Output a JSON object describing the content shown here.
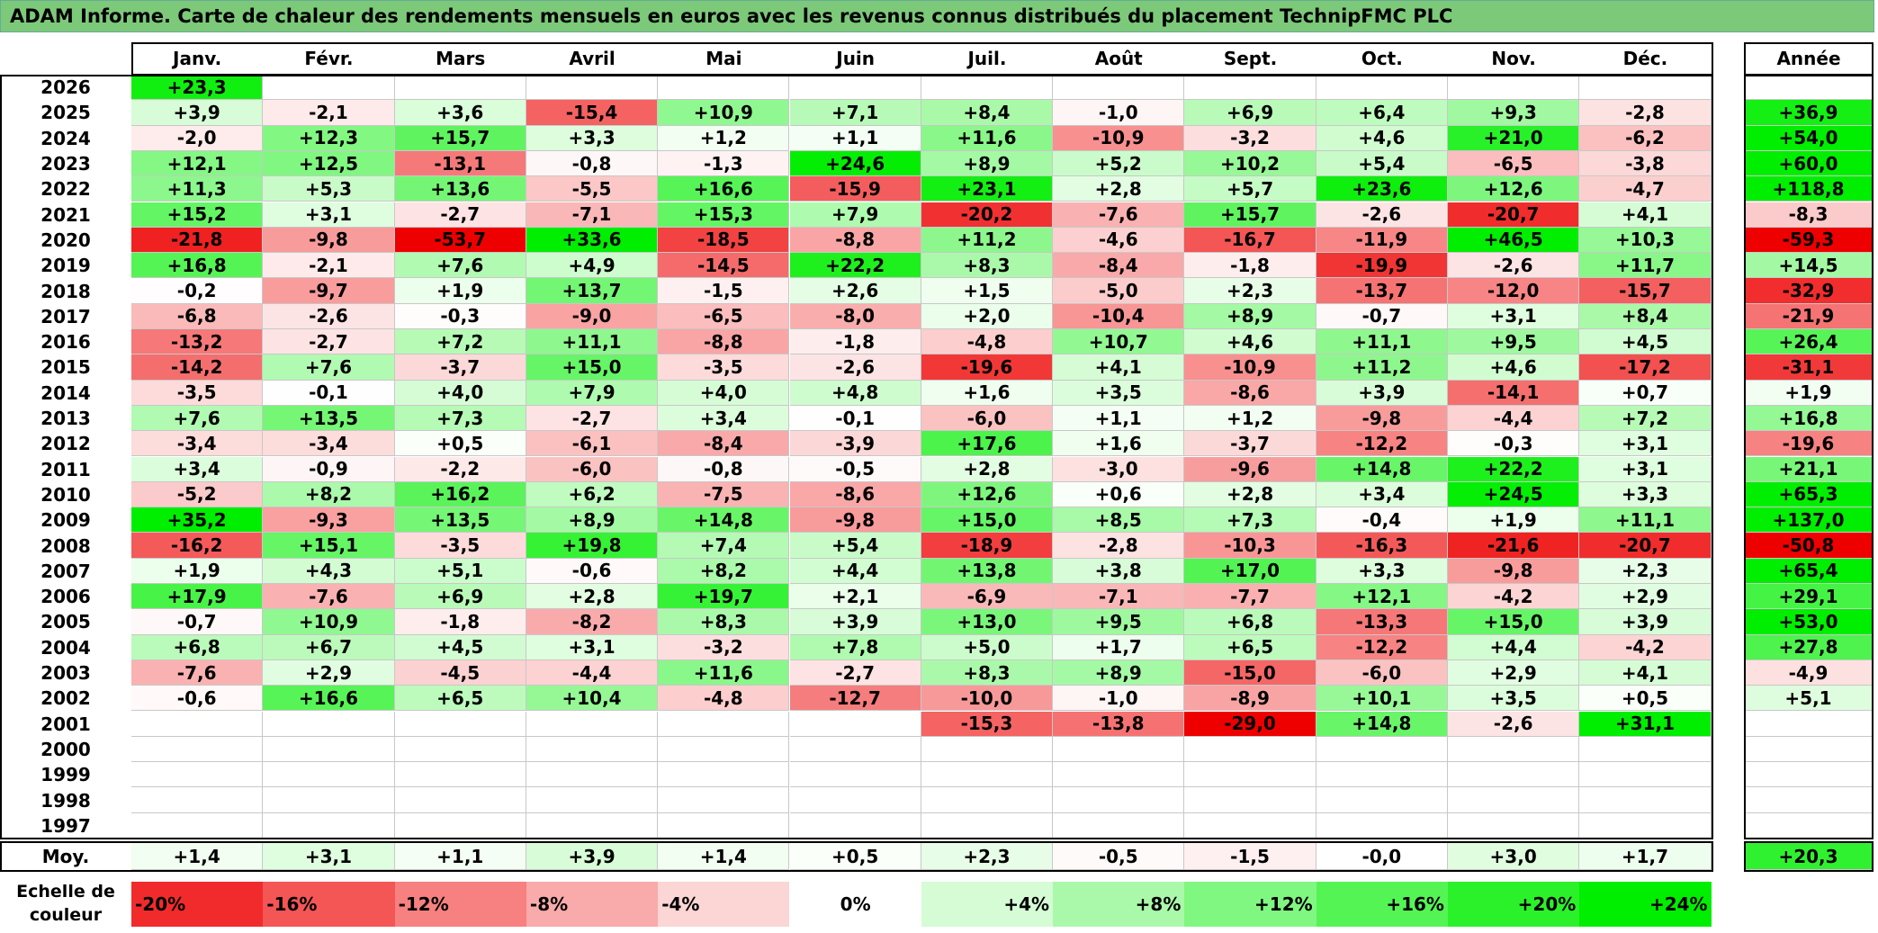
{
  "title": "ADAM Informe. Carte de chaleur des rendements mensuels en euros avec les revenus connus distribués du placement TechnipFMC PLC",
  "chart_data": {
    "type": "heatmap",
    "months": [
      "Janv.",
      "Févr.",
      "Mars",
      "Avril",
      "Mai",
      "Juin",
      "Juil.",
      "Août",
      "Sept.",
      "Oct.",
      "Nov.",
      "Déc."
    ],
    "annual_header": "Année",
    "rows": [
      {
        "year": "2026",
        "values": [
          "+23,3",
          "",
          "",
          "",
          "",
          "",
          "",
          "",
          "",
          "",
          "",
          ""
        ],
        "annual": ""
      },
      {
        "year": "2025",
        "values": [
          "+3,9",
          "-2,1",
          "+3,6",
          "-15,4",
          "+10,9",
          "+7,1",
          "+8,4",
          "-1,0",
          "+6,9",
          "+6,4",
          "+9,3",
          "-2,8"
        ],
        "annual": "+36,9"
      },
      {
        "year": "2024",
        "values": [
          "-2,0",
          "+12,3",
          "+15,7",
          "+3,3",
          "+1,2",
          "+1,1",
          "+11,6",
          "-10,9",
          "-3,2",
          "+4,6",
          "+21,0",
          "-6,2"
        ],
        "annual": "+54,0"
      },
      {
        "year": "2023",
        "values": [
          "+12,1",
          "+12,5",
          "-13,1",
          "-0,8",
          "-1,3",
          "+24,6",
          "+8,9",
          "+5,2",
          "+10,2",
          "+5,4",
          "-6,5",
          "-3,8"
        ],
        "annual": "+60,0"
      },
      {
        "year": "2022",
        "values": [
          "+11,3",
          "+5,3",
          "+13,6",
          "-5,5",
          "+16,6",
          "-15,9",
          "+23,1",
          "+2,8",
          "+5,7",
          "+23,6",
          "+12,6",
          "-4,7"
        ],
        "annual": "+118,8"
      },
      {
        "year": "2021",
        "values": [
          "+15,2",
          "+3,1",
          "-2,7",
          "-7,1",
          "+15,3",
          "+7,9",
          "-20,2",
          "-7,6",
          "+15,7",
          "-2,6",
          "-20,7",
          "+4,1"
        ],
        "annual": "-8,3"
      },
      {
        "year": "2020",
        "values": [
          "-21,8",
          "-9,8",
          "-53,7",
          "+33,6",
          "-18,5",
          "-8,8",
          "+11,2",
          "-4,6",
          "-16,7",
          "-11,9",
          "+46,5",
          "+10,3"
        ],
        "annual": "-59,3"
      },
      {
        "year": "2019",
        "values": [
          "+16,8",
          "-2,1",
          "+7,6",
          "+4,9",
          "-14,5",
          "+22,2",
          "+8,3",
          "-8,4",
          "-1,8",
          "-19,9",
          "-2,6",
          "+11,7"
        ],
        "annual": "+14,5"
      },
      {
        "year": "2018",
        "values": [
          "-0,2",
          "-9,7",
          "+1,9",
          "+13,7",
          "-1,5",
          "+2,6",
          "+1,5",
          "-5,0",
          "+2,3",
          "-13,7",
          "-12,0",
          "-15,7"
        ],
        "annual": "-32,9"
      },
      {
        "year": "2017",
        "values": [
          "-6,8",
          "-2,6",
          "-0,3",
          "-9,0",
          "-6,5",
          "-8,0",
          "+2,0",
          "-10,4",
          "+8,9",
          "-0,7",
          "+3,1",
          "+8,4"
        ],
        "annual": "-21,9"
      },
      {
        "year": "2016",
        "values": [
          "-13,2",
          "-2,7",
          "+7,2",
          "+11,1",
          "-8,8",
          "-1,8",
          "-4,8",
          "+10,7",
          "+4,6",
          "+11,1",
          "+9,5",
          "+4,5"
        ],
        "annual": "+26,4"
      },
      {
        "year": "2015",
        "values": [
          "-14,2",
          "+7,6",
          "-3,7",
          "+15,0",
          "-3,5",
          "-2,6",
          "-19,6",
          "+4,1",
          "-10,9",
          "+11,2",
          "+4,6",
          "-17,2"
        ],
        "annual": "-31,1"
      },
      {
        "year": "2014",
        "values": [
          "-3,5",
          "-0,1",
          "+4,0",
          "+7,9",
          "+4,0",
          "+4,8",
          "+1,6",
          "+3,5",
          "-8,6",
          "+3,9",
          "-14,1",
          "+0,7"
        ],
        "annual": "+1,9"
      },
      {
        "year": "2013",
        "values": [
          "+7,6",
          "+13,5",
          "+7,3",
          "-2,7",
          "+3,4",
          "-0,1",
          "-6,0",
          "+1,1",
          "+1,2",
          "-9,8",
          "-4,4",
          "+7,2"
        ],
        "annual": "+16,8"
      },
      {
        "year": "2012",
        "values": [
          "-3,4",
          "-3,4",
          "+0,5",
          "-6,1",
          "-8,4",
          "-3,9",
          "+17,6",
          "+1,6",
          "-3,7",
          "-12,2",
          "-0,3",
          "+3,1"
        ],
        "annual": "-19,6"
      },
      {
        "year": "2011",
        "values": [
          "+3,4",
          "-0,9",
          "-2,2",
          "-6,0",
          "-0,8",
          "-0,5",
          "+2,8",
          "-3,0",
          "-9,6",
          "+14,8",
          "+22,2",
          "+3,1"
        ],
        "annual": "+21,1"
      },
      {
        "year": "2010",
        "values": [
          "-5,2",
          "+8,2",
          "+16,2",
          "+6,2",
          "-7,5",
          "-8,6",
          "+12,6",
          "+0,6",
          "+2,8",
          "+3,4",
          "+24,5",
          "+3,3"
        ],
        "annual": "+65,3"
      },
      {
        "year": "2009",
        "values": [
          "+35,2",
          "-9,3",
          "+13,5",
          "+8,9",
          "+14,8",
          "-9,8",
          "+15,0",
          "+8,5",
          "+7,3",
          "-0,4",
          "+1,9",
          "+11,1"
        ],
        "annual": "+137,0"
      },
      {
        "year": "2008",
        "values": [
          "-16,2",
          "+15,1",
          "-3,5",
          "+19,8",
          "+7,4",
          "+5,4",
          "-18,9",
          "-2,8",
          "-10,3",
          "-16,3",
          "-21,6",
          "-20,7"
        ],
        "annual": "-50,8"
      },
      {
        "year": "2007",
        "values": [
          "+1,9",
          "+4,3",
          "+5,1",
          "-0,6",
          "+8,2",
          "+4,4",
          "+13,8",
          "+3,8",
          "+17,0",
          "+3,3",
          "-9,8",
          "+2,3"
        ],
        "annual": "+65,4"
      },
      {
        "year": "2006",
        "values": [
          "+17,9",
          "-7,6",
          "+6,9",
          "+2,8",
          "+19,7",
          "+2,1",
          "-6,9",
          "-7,1",
          "-7,7",
          "+12,1",
          "-4,2",
          "+2,9"
        ],
        "annual": "+29,1"
      },
      {
        "year": "2005",
        "values": [
          "-0,7",
          "+10,9",
          "-1,8",
          "-8,2",
          "+8,3",
          "+3,9",
          "+13,0",
          "+9,5",
          "+6,8",
          "-13,3",
          "+15,0",
          "+3,9"
        ],
        "annual": "+53,0"
      },
      {
        "year": "2004",
        "values": [
          "+6,8",
          "+6,7",
          "+4,5",
          "+3,1",
          "-3,2",
          "+7,8",
          "+5,0",
          "+1,7",
          "+6,5",
          "-12,2",
          "+4,4",
          "-4,2"
        ],
        "annual": "+27,8"
      },
      {
        "year": "2003",
        "values": [
          "-7,6",
          "+2,9",
          "-4,5",
          "-4,4",
          "+11,6",
          "-2,7",
          "+8,3",
          "+8,9",
          "-15,0",
          "-6,0",
          "+2,9",
          "+4,1"
        ],
        "annual": "-4,9"
      },
      {
        "year": "2002",
        "values": [
          "-0,6",
          "+16,6",
          "+6,5",
          "+10,4",
          "-4,8",
          "-12,7",
          "-10,0",
          "-1,0",
          "-8,9",
          "+10,1",
          "+3,5",
          "+0,5"
        ],
        "annual": "+5,1"
      },
      {
        "year": "2001",
        "values": [
          "",
          "",
          "",
          "",
          "",
          "",
          "-15,3",
          "-13,8",
          "-29,0",
          "+14,8",
          "-2,6",
          "+31,1"
        ],
        "annual": ""
      },
      {
        "year": "2000",
        "values": [
          "",
          "",
          "",
          "",
          "",
          "",
          "",
          "",
          "",
          "",
          "",
          ""
        ],
        "annual": ""
      },
      {
        "year": "1999",
        "values": [
          "",
          "",
          "",
          "",
          "",
          "",
          "",
          "",
          "",
          "",
          "",
          ""
        ],
        "annual": ""
      },
      {
        "year": "1998",
        "values": [
          "",
          "",
          "",
          "",
          "",
          "",
          "",
          "",
          "",
          "",
          "",
          ""
        ],
        "annual": ""
      },
      {
        "year": "1997",
        "values": [
          "",
          "",
          "",
          "",
          "",
          "",
          "",
          "",
          "",
          "",
          "",
          ""
        ],
        "annual": ""
      }
    ],
    "average": {
      "label": "Moy.",
      "values": [
        "+1,4",
        "+3,1",
        "+1,1",
        "+3,9",
        "+1,4",
        "+0,5",
        "+2,3",
        "-0,5",
        "-1,5",
        "-0,0",
        "+3,0",
        "+1,7"
      ],
      "annual": "+20,3"
    },
    "color_scale": {
      "label_line1": "Echelle de",
      "label_line2": "couleur",
      "stops": [
        "-20%",
        "-16%",
        "-12%",
        "-8%",
        "-4%",
        "0%",
        "+4%",
        "+8%",
        "+12%",
        "+16%",
        "+20%",
        "+24%"
      ]
    }
  }
}
